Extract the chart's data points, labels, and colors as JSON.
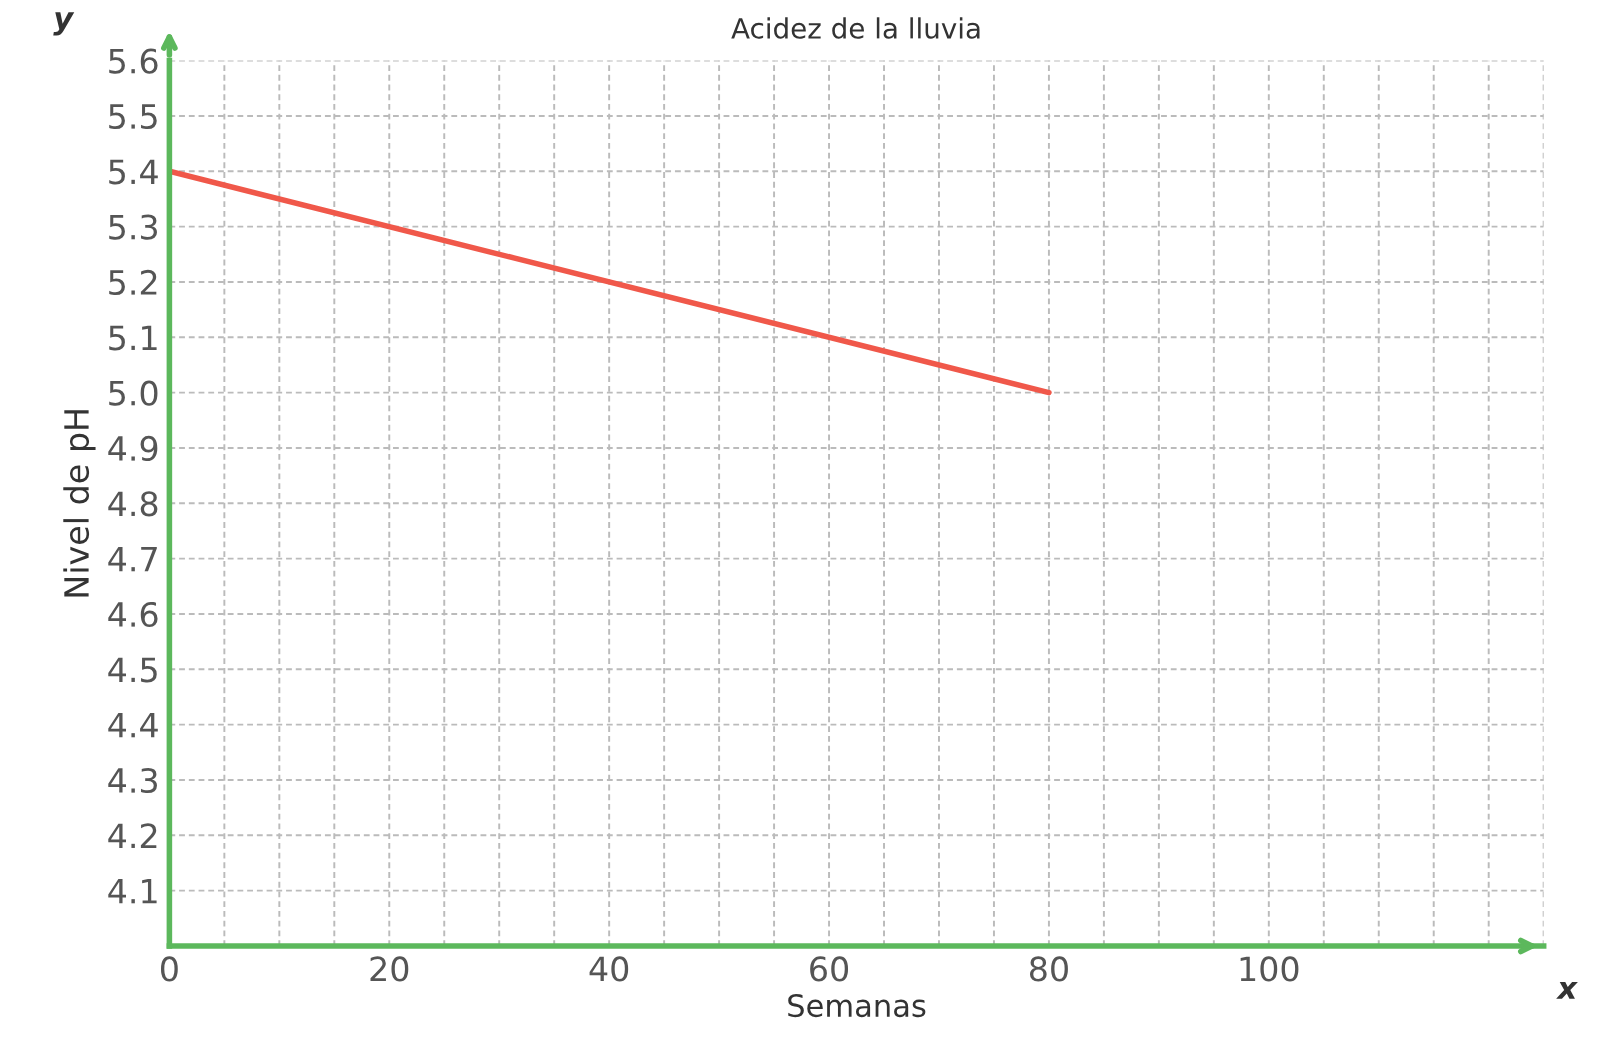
{
  "chart_data": {
    "type": "line",
    "title": "Acidez de la lluvia",
    "xlabel": "Semanas",
    "ylabel": "Nivel de pH",
    "annotations": [
      "y",
      "x"
    ],
    "x": [
      0,
      80
    ],
    "series": [
      {
        "color": "#f0584a",
        "values": [
          5.4,
          5.0
        ]
      }
    ],
    "xlim": [
      0,
      125
    ],
    "ylim": [
      4.0,
      5.6
    ],
    "xticks": [
      0,
      20,
      40,
      60,
      80,
      100
    ],
    "yticks": [
      4.1,
      4.2,
      4.3,
      4.4,
      4.5,
      4.6,
      4.7,
      4.8,
      4.9,
      {
        "value": 5.0,
        "label": "5.0"
      },
      5.1,
      5.2,
      5.3,
      5.4,
      5.5,
      5.6
    ],
    "grid": true,
    "marker": "none",
    "line_style": "solid"
  }
}
